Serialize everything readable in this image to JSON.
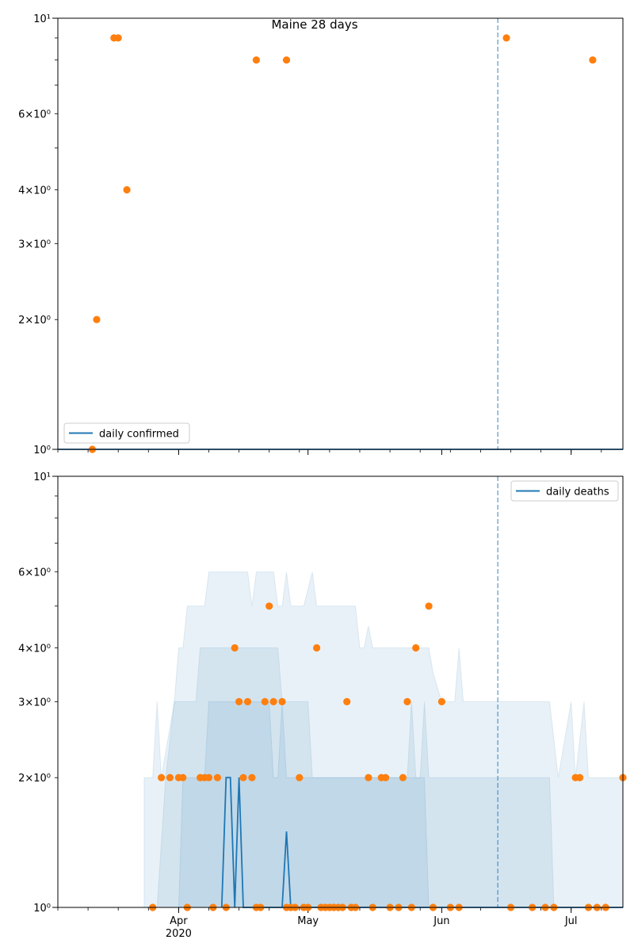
{
  "title": "Maine 28 days",
  "colors": {
    "line": "#1f77b4",
    "point": "#ff7f0e",
    "band": "#1f77b4"
  },
  "x_ticks": [
    {
      "date": "2020-04-01",
      "label": "Apr",
      "sublabel": "2020"
    },
    {
      "date": "2020-05-01",
      "label": "May",
      "sublabel": ""
    },
    {
      "date": "2020-06-01",
      "label": "Jun",
      "sublabel": ""
    },
    {
      "date": "2020-07-01",
      "label": "Jul",
      "sublabel": ""
    }
  ],
  "chart_data": [
    {
      "type": "line",
      "legend": "daily confirmed",
      "legend_position": "lower-left",
      "y_scale": "log",
      "ylim": [
        1,
        10
      ],
      "xlim": [
        "2020-03-04",
        "2020-07-13"
      ],
      "yticks": [
        {
          "value": 1,
          "label": "10⁰"
        },
        {
          "value": 2,
          "label": "2×10⁰"
        },
        {
          "value": 3,
          "label": "3×10⁰"
        },
        {
          "value": 4,
          "label": "4×10⁰"
        },
        {
          "value": 6,
          "label": "6×10⁰"
        },
        {
          "value": 10,
          "label": "10¹"
        }
      ],
      "vline_date": "2020-06-14",
      "series": [
        {
          "name": "daily confirmed",
          "kind": "line",
          "points": [
            [
              "2020-03-04",
              1
            ],
            [
              "2020-07-13",
              1
            ]
          ]
        }
      ],
      "observed": [
        [
          "2020-03-12",
          1
        ],
        [
          "2020-03-13",
          2
        ],
        [
          "2020-03-17",
          9
        ],
        [
          "2020-03-18",
          9
        ],
        [
          "2020-03-20",
          4
        ],
        [
          "2020-04-19",
          8
        ],
        [
          "2020-04-26",
          8
        ],
        [
          "2020-06-16",
          9
        ],
        [
          "2020-07-06",
          8
        ]
      ]
    },
    {
      "type": "line",
      "legend": "daily deaths",
      "legend_position": "top-right",
      "y_scale": "log",
      "ylim": [
        1,
        10
      ],
      "xlim": [
        "2020-03-04",
        "2020-07-13"
      ],
      "yticks": [
        {
          "value": 1,
          "label": "10⁰"
        },
        {
          "value": 2,
          "label": "2×10⁰"
        },
        {
          "value": 3,
          "label": "3×10⁰"
        },
        {
          "value": 4,
          "label": "4×10⁰"
        },
        {
          "value": 6,
          "label": "6×10⁰"
        },
        {
          "value": 10,
          "label": "10¹"
        }
      ],
      "vline_date": "2020-06-14",
      "bands": [
        {
          "name": "outer",
          "upper": [
            [
              "2020-03-24",
              2
            ],
            [
              "2020-03-26",
              2
            ],
            [
              "2020-03-27",
              3
            ],
            [
              "2020-03-28",
              2
            ],
            [
              "2020-03-31",
              3
            ],
            [
              "2020-04-01",
              4
            ],
            [
              "2020-04-02",
              4
            ],
            [
              "2020-04-03",
              5
            ],
            [
              "2020-04-07",
              5
            ],
            [
              "2020-04-08",
              6
            ],
            [
              "2020-04-17",
              6
            ],
            [
              "2020-04-18",
              5
            ],
            [
              "2020-04-19",
              6
            ],
            [
              "2020-04-23",
              6
            ],
            [
              "2020-04-24",
              5
            ],
            [
              "2020-04-25",
              5
            ],
            [
              "2020-04-26",
              6
            ],
            [
              "2020-04-27",
              5
            ],
            [
              "2020-04-30",
              5
            ],
            [
              "2020-05-02",
              6
            ],
            [
              "2020-05-03",
              5
            ],
            [
              "2020-05-12",
              5
            ],
            [
              "2020-05-13",
              4
            ],
            [
              "2020-05-14",
              4
            ],
            [
              "2020-05-15",
              4.5
            ],
            [
              "2020-05-16",
              4
            ],
            [
              "2020-05-29",
              4
            ],
            [
              "2020-05-30",
              3.5
            ],
            [
              "2020-06-01",
              3
            ],
            [
              "2020-06_04",
              3
            ],
            [
              "2020-06-05",
              4
            ],
            [
              "2020-06-06",
              3
            ],
            [
              "2020-06-26",
              3
            ],
            [
              "2020-06-28",
              2
            ],
            [
              "2020-07-01",
              3
            ],
            [
              "2020-07-02",
              2
            ],
            [
              "2020-07-04",
              3
            ],
            [
              "2020-07-05",
              2
            ],
            [
              "2020-07-13",
              2
            ]
          ],
          "lower": [
            [
              "2020-03-24",
              1
            ],
            [
              "2020-07-13",
              1
            ]
          ]
        },
        {
          "name": "middle",
          "upper": [
            [
              "2020-03-27",
              1
            ],
            [
              "2020-03-29",
              2
            ],
            [
              "2020-03-31",
              3
            ],
            [
              "2020-04-05",
              3
            ],
            [
              "2020-04-06",
              4
            ],
            [
              "2020-04-24",
              4
            ],
            [
              "2020-04-25",
              3
            ],
            [
              "2020-04-26",
              3
            ],
            [
              "2020-05-01",
              3
            ],
            [
              "2020-05-02",
              2
            ],
            [
              "2020-05-24",
              2
            ],
            [
              "2020-05-25",
              3
            ],
            [
              "2020-05-26",
              2
            ],
            [
              "2020-05-27",
              2
            ],
            [
              "2020-05-28",
              3
            ],
            [
              "2020-05-29",
              2
            ],
            [
              "2020-06-26",
              2
            ],
            [
              "2020-06-27",
              1
            ]
          ],
          "lower": [
            [
              "2020-03-27",
              1
            ],
            [
              "2020-06-27",
              1
            ]
          ]
        },
        {
          "name": "inner",
          "upper": [
            [
              "2020-04-01",
              1
            ],
            [
              "2020-04-02",
              2
            ],
            [
              "2020-04-07",
              2
            ],
            [
              "2020-04-08",
              3
            ],
            [
              "2020-04-22",
              3
            ],
            [
              "2020-04-23",
              2
            ],
            [
              "2020-04-24",
              2
            ],
            [
              "2020-04-25",
              3
            ],
            [
              "2020-04-26",
              2
            ],
            [
              "2020-05-28",
              2
            ],
            [
              "2020-05-29",
              1
            ]
          ],
          "lower": [
            [
              "2020-04-01",
              1
            ],
            [
              "2020-05-29",
              1
            ]
          ]
        }
      ],
      "series": [
        {
          "name": "daily deaths",
          "kind": "line",
          "points": [
            [
              "2020-04-11",
              1
            ],
            [
              "2020-04-12",
              2
            ],
            [
              "2020-04-13",
              2
            ],
            [
              "2020-04-14",
              1
            ],
            [
              "2020-04-15",
              2
            ],
            [
              "2020-04-16",
              1
            ],
            [
              "2020-04-25",
              1
            ],
            [
              "2020-04-26",
              1.5
            ],
            [
              "2020-04-27",
              1
            ],
            [
              "2020-07-13",
              1
            ]
          ]
        }
      ],
      "observed": [
        [
          "2020-03-26",
          1
        ],
        [
          "2020-03-28",
          2
        ],
        [
          "2020-03-30",
          2
        ],
        [
          "2020-04-01",
          2
        ],
        [
          "2020-04-02",
          2
        ],
        [
          "2020-04-03",
          1
        ],
        [
          "2020-04-06",
          2
        ],
        [
          "2020-04-07",
          2
        ],
        [
          "2020-04-08",
          2
        ],
        [
          "2020-04-09",
          1
        ],
        [
          "2020-04-10",
          2
        ],
        [
          "2020-04-12",
          1
        ],
        [
          "2020-04-14",
          4
        ],
        [
          "2020-04-15",
          3
        ],
        [
          "2020-04-16",
          2
        ],
        [
          "2020-04-17",
          3
        ],
        [
          "2020-04-18",
          2
        ],
        [
          "2020-04-19",
          1
        ],
        [
          "2020-04-20",
          1
        ],
        [
          "2020-04-21",
          3
        ],
        [
          "2020-04-22",
          5
        ],
        [
          "2020-04-23",
          3
        ],
        [
          "2020-04-25",
          3
        ],
        [
          "2020-04-26",
          1
        ],
        [
          "2020-04-27",
          1
        ],
        [
          "2020-04-28",
          1
        ],
        [
          "2020-04-29",
          2
        ],
        [
          "2020-04-30",
          1
        ],
        [
          "2020-05-01",
          1
        ],
        [
          "2020-05-03",
          4
        ],
        [
          "2020-05-04",
          1
        ],
        [
          "2020-05-05",
          1
        ],
        [
          "2020-05-06",
          1
        ],
        [
          "2020-05-07",
          1
        ],
        [
          "2020-05-08",
          1
        ],
        [
          "2020-05-09",
          1
        ],
        [
          "2020-05-10",
          3
        ],
        [
          "2020-05-11",
          1
        ],
        [
          "2020-05-12",
          1
        ],
        [
          "2020-05-15",
          2
        ],
        [
          "2020-05-16",
          1
        ],
        [
          "2020-05-18",
          2
        ],
        [
          "2020-05-19",
          2
        ],
        [
          "2020-05-20",
          1
        ],
        [
          "2020-05-22",
          1
        ],
        [
          "2020-05-23",
          2
        ],
        [
          "2020-05-24",
          3
        ],
        [
          "2020-05-25",
          1
        ],
        [
          "2020-05-26",
          4
        ],
        [
          "2020-05-29",
          5
        ],
        [
          "2020-05-30",
          1
        ],
        [
          "2020-06-01",
          3
        ],
        [
          "2020-06-03",
          1
        ],
        [
          "2020-06-05",
          1
        ],
        [
          "2020-06-17",
          1
        ],
        [
          "2020-06-22",
          1
        ],
        [
          "2020-06-25",
          1
        ],
        [
          "2020-06-27",
          1
        ],
        [
          "2020-07-02",
          2
        ],
        [
          "2020-07-03",
          2
        ],
        [
          "2020-07-05",
          1
        ],
        [
          "2020-07-07",
          1
        ],
        [
          "2020-07-09",
          1
        ],
        [
          "2020-07-13",
          2
        ]
      ]
    }
  ]
}
